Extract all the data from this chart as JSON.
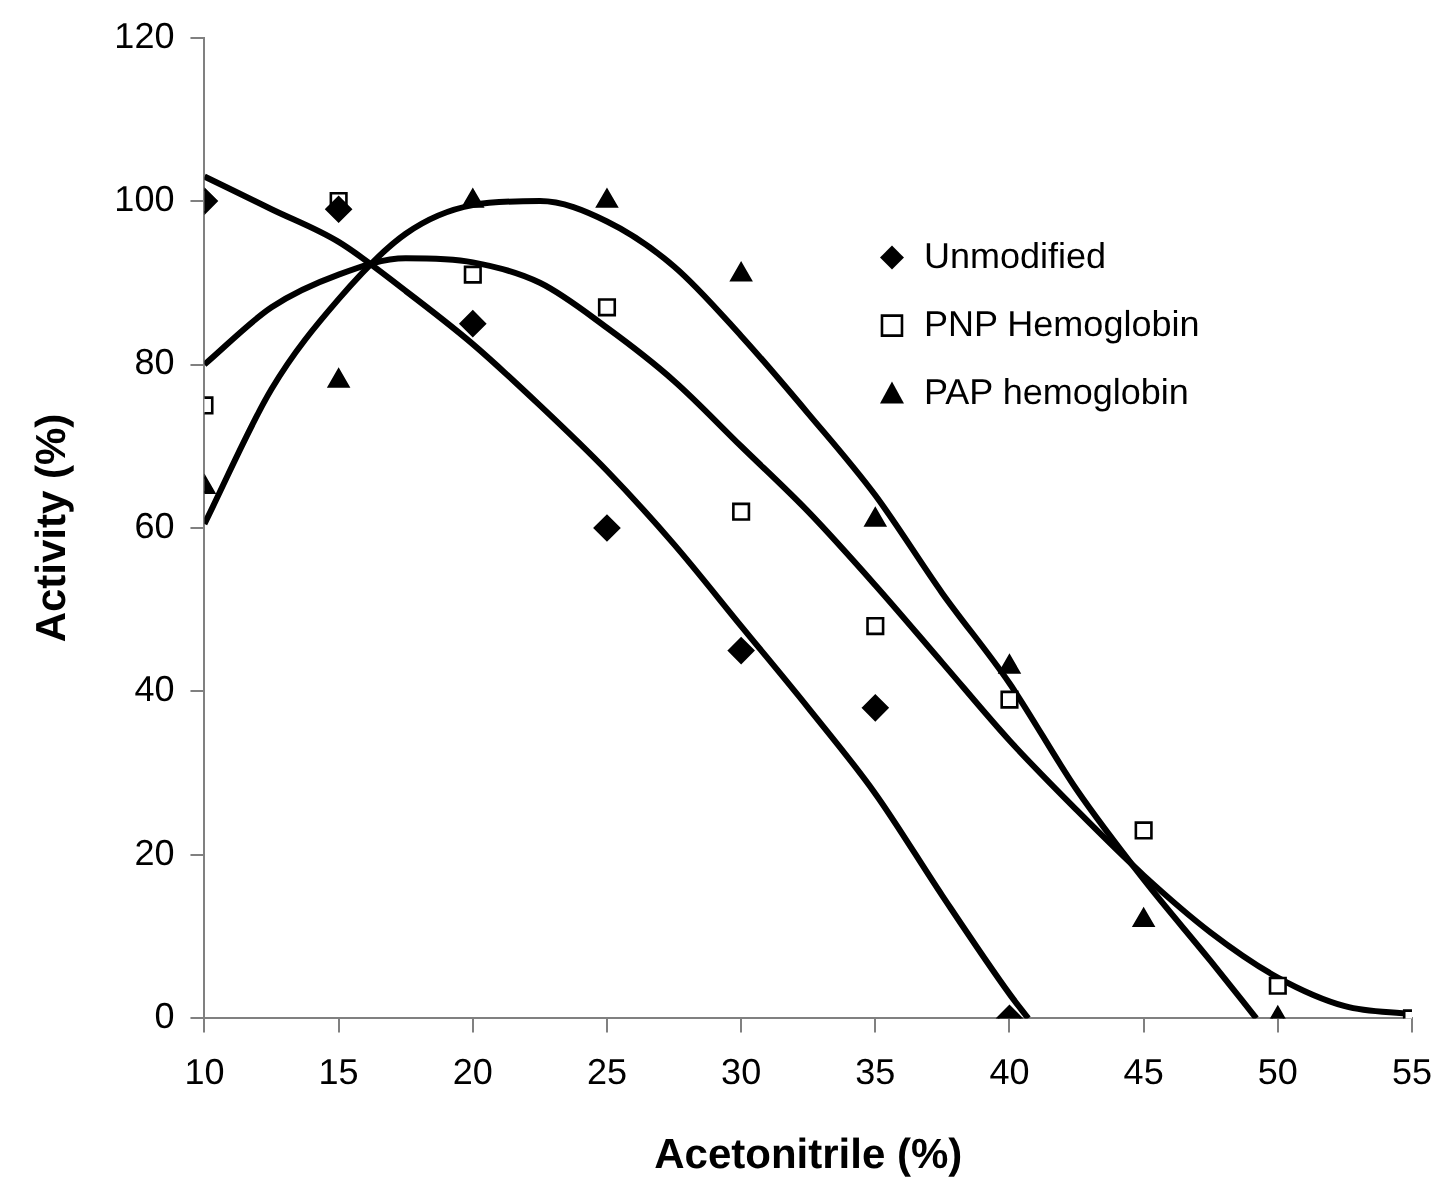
{
  "chart_data": {
    "type": "scatter",
    "xlabel": "Acetonitrile (%)",
    "ylabel": "Activity (%)",
    "xlim": [
      10,
      55
    ],
    "xticks": [
      10,
      15,
      20,
      25,
      30,
      35,
      40,
      45,
      50,
      55
    ],
    "ylim": [
      0,
      120
    ],
    "yticks": [
      0,
      20,
      40,
      60,
      80,
      100,
      120
    ],
    "grid": false,
    "legend": "top right",
    "series": [
      {
        "name": "Unmodified",
        "type": "scatter",
        "marker": "diamond",
        "color": "#000000",
        "x": [
          10,
          15,
          20,
          25,
          30,
          35,
          40
        ],
        "values": [
          100,
          99,
          85,
          60,
          45,
          38,
          0
        ]
      },
      {
        "name": "PNP Hemoglobin",
        "type": "scatter",
        "marker": "square",
        "color": "#000000",
        "x": [
          10,
          15,
          20,
          25,
          30,
          35,
          40,
          45,
          50,
          55
        ],
        "values": [
          75,
          100,
          91,
          87,
          62,
          48,
          39,
          23,
          4,
          0
        ]
      },
      {
        "name": "PAP hemoglobin",
        "type": "scatter",
        "marker": "triangle",
        "color": "#000000",
        "x": [
          10,
          15,
          20,
          25,
          30,
          35,
          40,
          45,
          50
        ],
        "values": [
          65,
          78,
          100,
          100,
          91,
          61,
          43,
          12,
          0
        ]
      },
      {
        "type": "line",
        "marker": "none",
        "line_style": "solid",
        "color": "#000000",
        "x": [
          10,
          12.5,
          15,
          17.5,
          20,
          22.5,
          25,
          27.5,
          30,
          32.5,
          35,
          37.5,
          40,
          40.7
        ],
        "values": [
          103,
          99,
          95,
          89,
          82.5,
          75,
          67,
          58,
          48,
          38,
          27.5,
          15,
          3,
          0
        ]
      },
      {
        "type": "line",
        "marker": "none",
        "line_style": "solid",
        "color": "#000000",
        "x": [
          10,
          12.5,
          15,
          17.5,
          20,
          22.5,
          25,
          27.5,
          30,
          32.5,
          35,
          37.5,
          40,
          42.5,
          45,
          47.5,
          50,
          52.5,
          55
        ],
        "values": [
          80,
          87,
          91,
          93,
          92.5,
          90,
          84.5,
          78,
          70,
          62,
          53,
          43.5,
          34,
          25.5,
          17.5,
          10.5,
          5,
          1.5,
          0.5
        ]
      },
      {
        "type": "line",
        "marker": "none",
        "line_style": "solid",
        "color": "#000000",
        "x": [
          10,
          12.5,
          15,
          17.5,
          20,
          22.5,
          25,
          27.5,
          30,
          32.5,
          35,
          37.5,
          40,
          42.5,
          45,
          47.5,
          49.2
        ],
        "values": [
          60.5,
          77,
          88,
          96,
          99.5,
          100,
          97.5,
          92,
          83.5,
          74,
          64,
          52,
          41,
          28,
          17,
          7,
          0
        ]
      }
    ]
  }
}
